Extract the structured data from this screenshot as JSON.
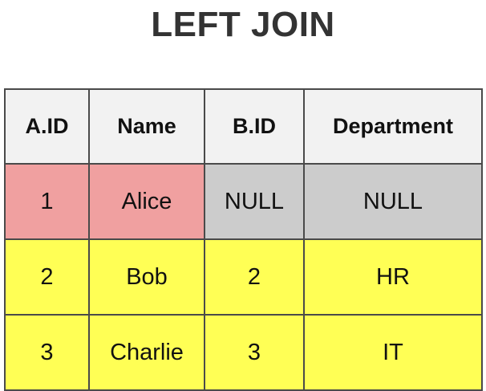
{
  "title": "LEFT JOIN",
  "colors": {
    "header_bg": "#f2f2f2",
    "left_only_bg": "#f0a0a0",
    "null_bg": "#cccccc",
    "matched_bg": "#ffff55",
    "border": "#4a4a4a",
    "title_text": "#333333"
  },
  "table": {
    "headers": [
      "A.ID",
      "Name",
      "B.ID",
      "Department"
    ],
    "rows": [
      {
        "cells": [
          "1",
          "Alice",
          "NULL",
          "NULL"
        ],
        "cell_colors": [
          "left_only_bg",
          "left_only_bg",
          "null_bg",
          "null_bg"
        ]
      },
      {
        "cells": [
          "2",
          "Bob",
          "2",
          "HR"
        ],
        "cell_colors": [
          "matched_bg",
          "matched_bg",
          "matched_bg",
          "matched_bg"
        ]
      },
      {
        "cells": [
          "3",
          "Charlie",
          "3",
          "IT"
        ],
        "cell_colors": [
          "matched_bg",
          "matched_bg",
          "matched_bg",
          "matched_bg"
        ]
      }
    ]
  }
}
